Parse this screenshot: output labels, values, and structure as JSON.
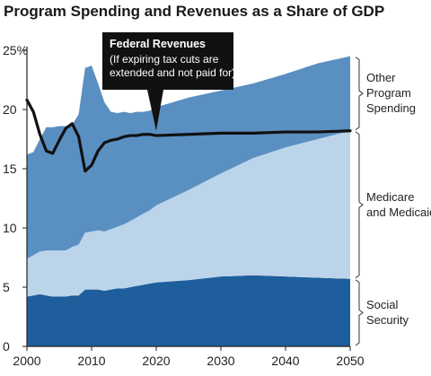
{
  "chart_data": {
    "type": "area",
    "title": "Program Spending and Revenues as a Share of GDP",
    "xlabel": "",
    "ylabel": "",
    "xlim": [
      2000,
      2050
    ],
    "ylim": [
      0,
      25
    ],
    "x_ticks": [
      "2000",
      "2010",
      "2020",
      "2030",
      "2040",
      "2050"
    ],
    "y_ticks": [
      "0",
      "5",
      "10",
      "15",
      "20",
      "25%"
    ],
    "years": [
      2000,
      2001,
      2002,
      2003,
      2004,
      2005,
      2006,
      2007,
      2008,
      2009,
      2010,
      2011,
      2012,
      2013,
      2014,
      2015,
      2016,
      2017,
      2018,
      2019,
      2020,
      2025,
      2030,
      2035,
      2040,
      2045,
      2050
    ],
    "stacked_series": [
      {
        "name": "Social Security",
        "label": [
          "Social",
          "Security"
        ],
        "color": "#1f5e9c",
        "values": [
          4.2,
          4.3,
          4.4,
          4.3,
          4.2,
          4.2,
          4.2,
          4.3,
          4.3,
          4.8,
          4.8,
          4.8,
          4.7,
          4.8,
          4.9,
          4.9,
          5.0,
          5.1,
          5.2,
          5.3,
          5.4,
          5.6,
          5.9,
          6.0,
          5.9,
          5.8,
          5.7
        ]
      },
      {
        "name": "Medicare and Medicaid",
        "label": [
          "Medicare",
          "and Medicaid"
        ],
        "color": "#bcd4ea",
        "values": [
          3.2,
          3.4,
          3.6,
          3.8,
          3.9,
          3.9,
          3.9,
          4.1,
          4.3,
          4.8,
          4.9,
          5.0,
          5.0,
          5.1,
          5.2,
          5.4,
          5.6,
          5.8,
          6.0,
          6.2,
          6.5,
          7.6,
          8.7,
          9.9,
          10.9,
          11.7,
          12.5
        ]
      },
      {
        "name": "Other Program Spending",
        "label": [
          "Other",
          "Program",
          "Spending"
        ],
        "color": "#5a8fc2",
        "values": [
          8.8,
          8.7,
          9.5,
          10.4,
          10.4,
          10.5,
          10.5,
          10.3,
          11.0,
          13.9,
          14.0,
          12.4,
          10.9,
          9.9,
          9.6,
          9.5,
          9.1,
          8.9,
          8.6,
          8.4,
          8.3,
          7.8,
          7.0,
          6.3,
          6.2,
          6.4,
          6.3
        ]
      }
    ],
    "line_series": {
      "name": "Federal Revenues",
      "color": "#111111",
      "x": [
        2000,
        2001,
        2002,
        2003,
        2004,
        2005,
        2006,
        2007,
        2008,
        2009,
        2010,
        2011,
        2012,
        2013,
        2014,
        2015,
        2016,
        2017,
        2018,
        2019,
        2020,
        2025,
        2030,
        2035,
        2040,
        2045,
        2050
      ],
      "values": [
        20.8,
        19.8,
        17.9,
        16.5,
        16.3,
        17.4,
        18.4,
        18.8,
        17.7,
        14.8,
        15.3,
        16.5,
        17.2,
        17.4,
        17.5,
        17.7,
        17.8,
        17.8,
        17.9,
        17.9,
        17.8,
        17.9,
        18.0,
        18.0,
        18.1,
        18.1,
        18.2
      ]
    },
    "callout": {
      "title": "Federal Revenues",
      "lines": [
        "(If expiring tax cuts are",
        "extended and not paid for)"
      ],
      "background": "#111111"
    },
    "grid": false,
    "legend_position": "right"
  }
}
